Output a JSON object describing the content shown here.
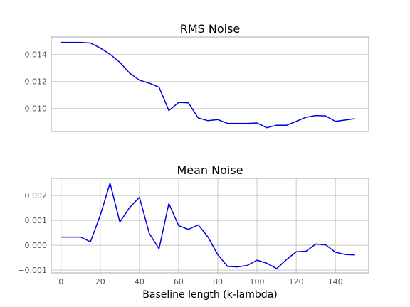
{
  "chart_data": [
    {
      "type": "line",
      "title": "RMS Noise",
      "xlabel": "",
      "ylabel": "",
      "xlim": [
        -5,
        157
      ],
      "ylim": [
        0.0083,
        0.0153
      ],
      "yticks": [
        0.01,
        0.012,
        0.014
      ],
      "ytick_labels": [
        "0.010",
        "0.012",
        "0.014"
      ],
      "grid": true,
      "show_xticks": false,
      "color": "#0000dd",
      "series": [
        {
          "x": [
            0,
            5,
            10,
            15,
            20,
            25,
            30,
            35,
            40,
            45,
            50,
            55,
            60,
            65,
            70,
            75,
            80,
            85,
            90,
            95,
            100,
            105,
            110,
            115,
            120,
            125,
            130,
            135,
            140,
            145,
            150
          ],
          "values": [
            0.0149,
            0.0149,
            0.0149,
            0.01485,
            0.01448,
            0.01402,
            0.01342,
            0.01262,
            0.0121,
            0.01188,
            0.01158,
            0.00985,
            0.01045,
            0.01042,
            0.0093,
            0.0091,
            0.00918,
            0.0089,
            0.0089,
            0.0089,
            0.00893,
            0.00858,
            0.00876,
            0.00876,
            0.00905,
            0.00935,
            0.00948,
            0.00945,
            0.00905,
            0.00915,
            0.00925
          ]
        }
      ]
    },
    {
      "type": "line",
      "title": "Mean Noise",
      "xlabel": "Baseline length (k-lambda)",
      "ylabel": "",
      "xlim": [
        -5,
        157
      ],
      "ylim": [
        -0.00111,
        0.00269
      ],
      "yticks": [
        -0.001,
        0.0,
        0.001,
        0.002
      ],
      "ytick_labels": [
        "−0.001",
        "0.000",
        "0.001",
        "0.002"
      ],
      "xticks": [
        0,
        20,
        40,
        60,
        80,
        100,
        120,
        140
      ],
      "xtick_labels": [
        "0",
        "20",
        "40",
        "60",
        "80",
        "100",
        "120",
        "140"
      ],
      "grid": true,
      "show_xticks": true,
      "color": "#0000dd",
      "series": [
        {
          "x": [
            0,
            5,
            10,
            15,
            20,
            25,
            30,
            35,
            40,
            45,
            50,
            55,
            60,
            65,
            70,
            75,
            80,
            85,
            90,
            95,
            100,
            105,
            110,
            115,
            120,
            125,
            130,
            135,
            140,
            145,
            150
          ],
          "values": [
            0.00033,
            0.00033,
            0.00033,
            0.00014,
            0.0012,
            0.0025,
            0.00093,
            0.00152,
            0.00193,
            0.00048,
            -0.00014,
            0.00168,
            0.00079,
            0.00064,
            0.00082,
            0.00033,
            -0.00038,
            -0.00085,
            -0.00087,
            -0.00081,
            -0.0006,
            -0.00072,
            -0.00094,
            -0.00058,
            -0.00026,
            -0.00024,
            5e-05,
            2e-05,
            -0.00028,
            -0.00037,
            -0.00039
          ]
        }
      ]
    }
  ]
}
